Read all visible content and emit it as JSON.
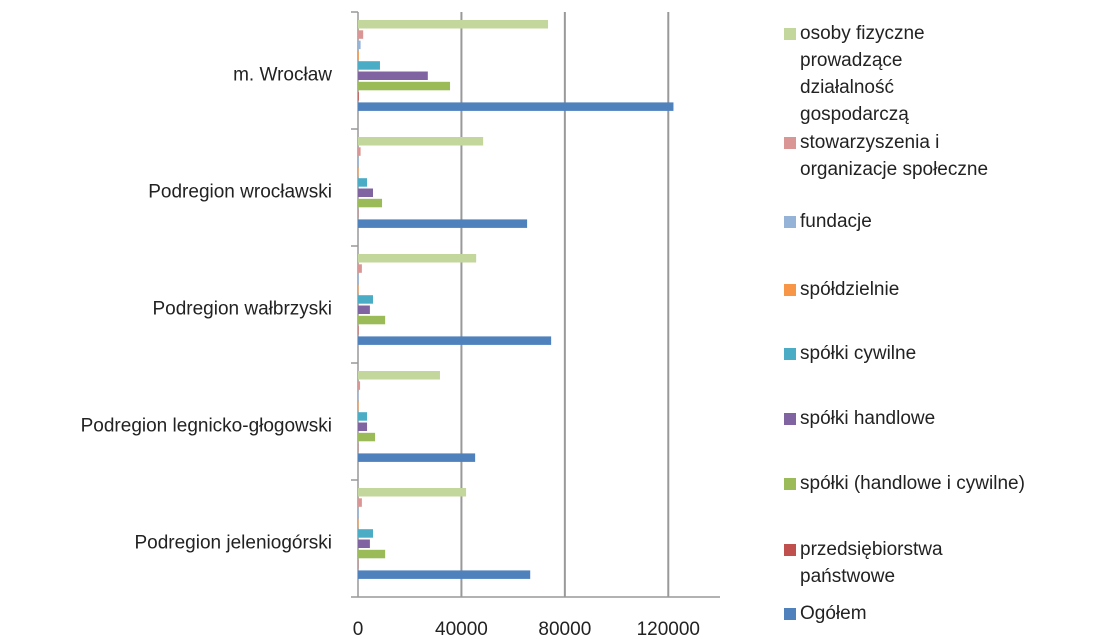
{
  "chart_data": {
    "type": "bar",
    "orientation": "horizontal",
    "categories": [
      "m. Wrocław",
      "Podregion wrocławski",
      "Podregion wałbrzyski",
      "Podregion legnicko-głogowski",
      "Podregion jeleniogórski"
    ],
    "series": [
      {
        "name": "Ogółem",
        "color": "#4f81bd",
        "values": [
          122000,
          65400,
          74700,
          45300,
          66600
        ]
      },
      {
        "name": "przedsiębiorstwa państwowe",
        "color": "#c0504d",
        "values": [
          300,
          100,
          200,
          100,
          100
        ]
      },
      {
        "name": "spółki (handlowe i cywilne)",
        "color": "#9bbb59",
        "values": [
          35600,
          9300,
          10500,
          6600,
          10500
        ]
      },
      {
        "name": "spółki handlowe",
        "color": "#8064a2",
        "values": [
          27000,
          5800,
          4600,
          3500,
          4600
        ]
      },
      {
        "name": "spółki cywilne",
        "color": "#4bacc6",
        "values": [
          8500,
          3500,
          5800,
          3500,
          5800
        ]
      },
      {
        "name": "spółdzielnie",
        "color": "#f79646",
        "values": [
          300,
          200,
          200,
          200,
          200
        ]
      },
      {
        "name": "fundacje",
        "color": "#95b3d7",
        "values": [
          1000,
          300,
          300,
          200,
          300
        ]
      },
      {
        "name": "stowarzyszenia i organizacje społeczne",
        "color": "#d99694",
        "values": [
          2000,
          1000,
          1500,
          800,
          1500
        ]
      },
      {
        "name": "osoby fizyczne prowadzące działalność gospodarczą",
        "color": "#c3d69b",
        "values": [
          73500,
          48400,
          45700,
          31700,
          41800
        ]
      }
    ],
    "xlim": [
      0,
      140000
    ],
    "xticks": [
      0,
      40000,
      80000,
      120000
    ],
    "grid": true,
    "legend": "right"
  }
}
